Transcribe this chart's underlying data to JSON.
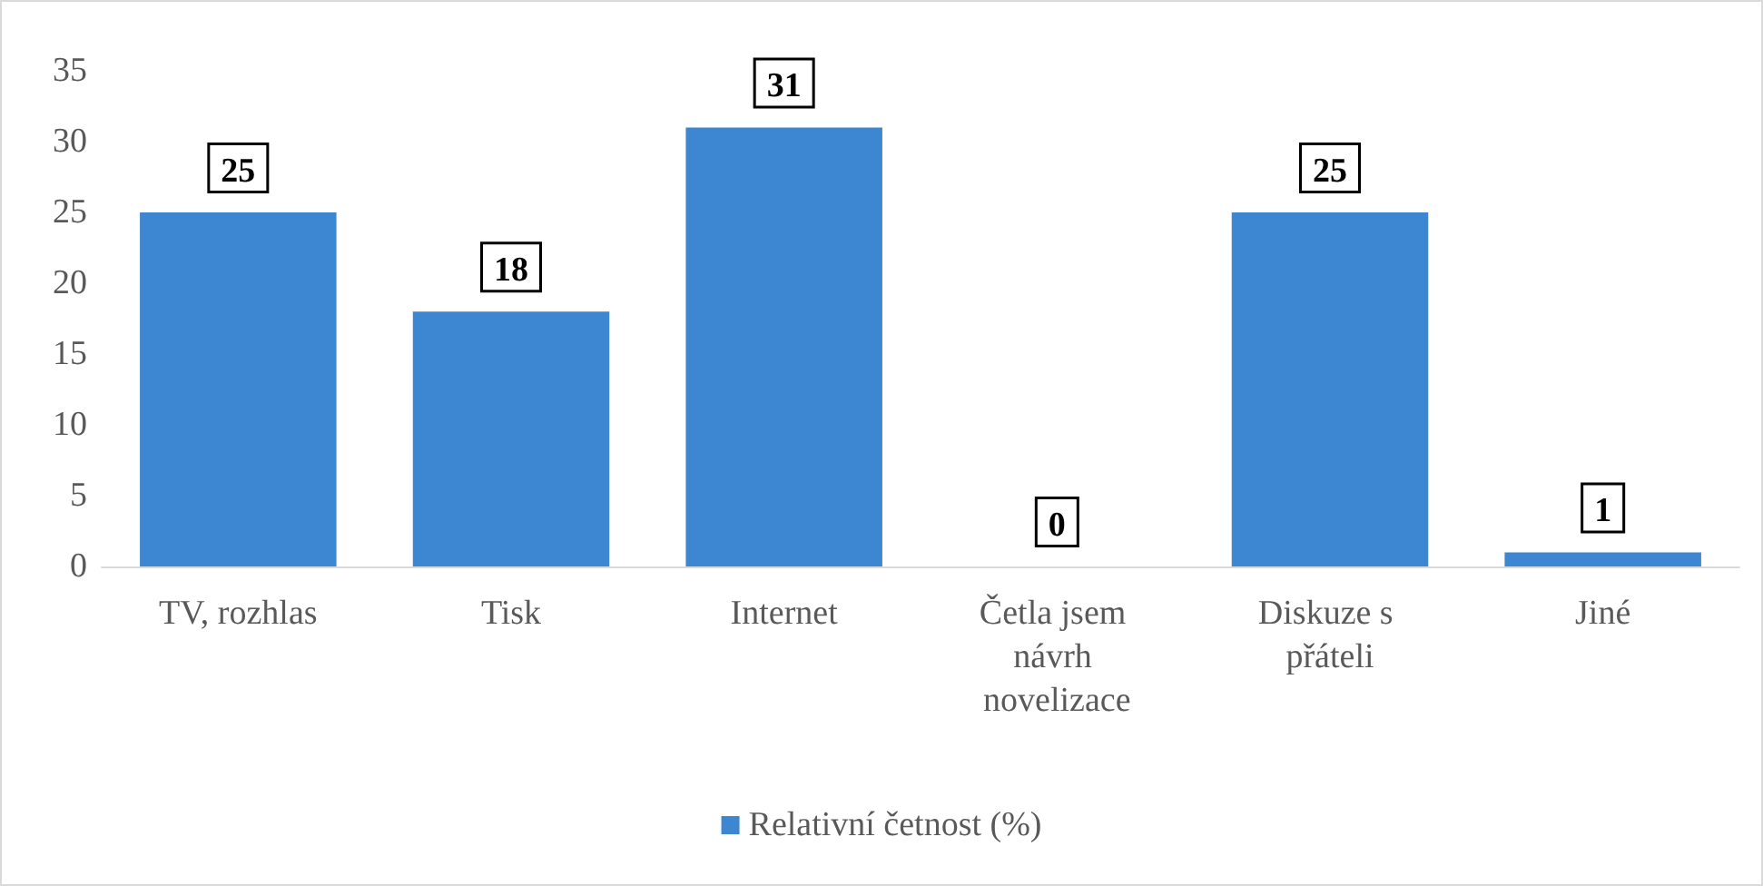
{
  "chart_data": {
    "type": "bar",
    "categories": [
      "TV, rozhlas",
      "Tisk",
      "Internet",
      "Četla jsem návrh novelizace",
      "Diskuze s přáteli",
      "Jiné"
    ],
    "series": [
      {
        "name": "Relativní četnost (%)",
        "color": "#3d86d2",
        "values": [
          25,
          18,
          31,
          0,
          25,
          1
        ]
      }
    ],
    "ylim": [
      0,
      35
    ],
    "yticks": [
      0,
      5,
      10,
      15,
      20,
      25,
      30,
      35
    ],
    "grid": false,
    "legend": "bottom",
    "data_labels": true
  }
}
